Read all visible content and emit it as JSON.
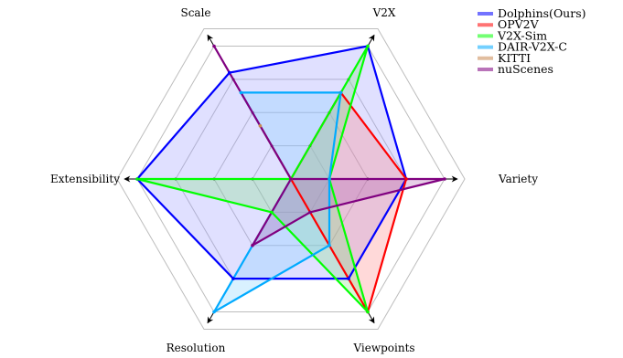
{
  "chart_data": {
    "type": "radar",
    "axes": [
      "Scale",
      "V2X",
      "Variety",
      "Viewpoints",
      "Resolution",
      "Extensibility"
    ],
    "levels": 4,
    "max": 4,
    "grid": true,
    "legend_position": "top-right",
    "series": [
      {
        "name": "Dolphins(Ours)",
        "color": "#0000ff",
        "fill": "#9999ff",
        "values": [
          3.2,
          4,
          3,
          3,
          3,
          4
        ]
      },
      {
        "name": "OPV2V",
        "color": "#ff0000",
        "fill": "#ff8080",
        "values": [
          0,
          2.6,
          3,
          4,
          0,
          0
        ]
      },
      {
        "name": "V2X-Sim",
        "color": "#00ff00",
        "fill": "#80e080",
        "values": [
          0,
          4,
          1,
          4,
          1,
          4
        ]
      },
      {
        "name": "DAIR-V2X-C",
        "color": "#00aaff",
        "fill": "#80d0ff",
        "values": [
          2.6,
          2.6,
          1,
          2,
          4,
          0
        ]
      },
      {
        "name": "KITTI",
        "color": "#c88850",
        "fill": "#d8b080",
        "values": [
          1.6,
          0,
          0,
          0,
          0,
          0
        ]
      },
      {
        "name": "nuScenes",
        "color": "#800080",
        "fill": "#b060b0",
        "values": [
          4,
          0,
          4,
          1,
          2,
          0
        ]
      }
    ]
  }
}
